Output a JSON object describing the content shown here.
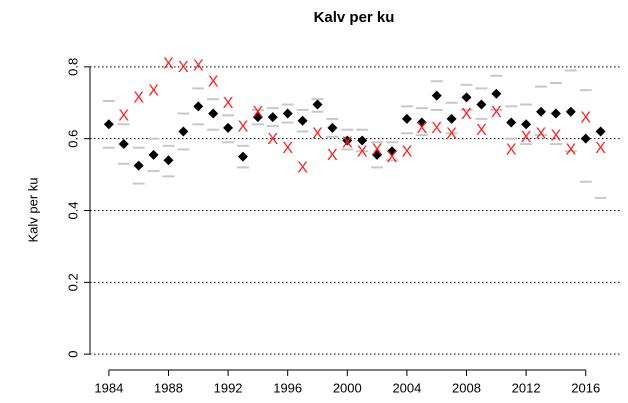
{
  "chart_data": {
    "type": "scatter",
    "title": "Kalv per ku",
    "ylabel": "Kalv per ku",
    "x": [
      1984,
      1985,
      1986,
      1987,
      1988,
      1989,
      1990,
      1991,
      1992,
      1993,
      1994,
      1995,
      1996,
      1997,
      1998,
      1999,
      2000,
      2001,
      2002,
      2003,
      2004,
      2005,
      2006,
      2007,
      2008,
      2009,
      2010,
      2011,
      2012,
      2013,
      2014,
      2015,
      2016,
      2017
    ],
    "series": [
      {
        "color": "#c8c8c8",
        "marker": "dash",
        "values": [
          0.705,
          0.64,
          0.575,
          0.6,
          0.58,
          0.67,
          0.74,
          0.71,
          0.665,
          0.58,
          0.68,
          0.685,
          0.695,
          0.68,
          0.71,
          0.655,
          0.625,
          0.625,
          0.59,
          0.59,
          0.69,
          0.685,
          0.76,
          0.7,
          0.75,
          0.74,
          0.775,
          0.69,
          0.695,
          0.745,
          0.755,
          0.79,
          0.735,
          null
        ]
      },
      {
        "color": "#c8c8c8",
        "marker": "dash",
        "values": [
          0.575,
          0.53,
          0.475,
          0.51,
          0.495,
          0.57,
          0.64,
          0.625,
          0.59,
          0.52,
          0.64,
          0.635,
          0.645,
          0.62,
          0.675,
          0.605,
          0.57,
          0.565,
          0.52,
          0.54,
          0.615,
          0.61,
          0.68,
          0.615,
          0.68,
          0.655,
          0.68,
          0.6,
          0.585,
          0.61,
          0.585,
          0.565,
          0.48,
          0.435
        ]
      },
      {
        "color": "#000000",
        "marker": "diamond",
        "values": [
          0.64,
          0.585,
          0.525,
          0.555,
          0.54,
          0.62,
          0.69,
          0.67,
          0.63,
          0.55,
          0.66,
          0.66,
          0.67,
          0.65,
          0.695,
          0.63,
          0.595,
          0.595,
          0.555,
          0.565,
          0.655,
          0.645,
          0.72,
          0.655,
          0.715,
          0.695,
          0.725,
          0.645,
          0.64,
          0.675,
          0.67,
          0.675,
          0.6,
          0.62
        ]
      },
      {
        "color": "#ff2020",
        "marker": "x",
        "values": [
          null,
          0.665,
          0.715,
          0.735,
          0.81,
          0.8,
          0.805,
          0.76,
          0.7,
          0.635,
          0.675,
          0.6,
          0.575,
          0.52,
          0.615,
          0.555,
          0.59,
          0.565,
          0.57,
          0.55,
          0.565,
          0.63,
          0.63,
          0.615,
          0.67,
          0.625,
          0.675,
          0.57,
          0.605,
          0.615,
          0.61,
          0.57,
          0.66,
          0.575
        ]
      }
    ],
    "xlim": [
      1982.6,
      2018.3
    ],
    "xticks": [
      1984,
      1988,
      1992,
      1996,
      2000,
      2004,
      2008,
      2012,
      2016
    ],
    "ylim": [
      -0.033,
      0.833
    ],
    "yticks": [
      0,
      0.2,
      0.4,
      0.6,
      0.8
    ],
    "grid": true
  }
}
